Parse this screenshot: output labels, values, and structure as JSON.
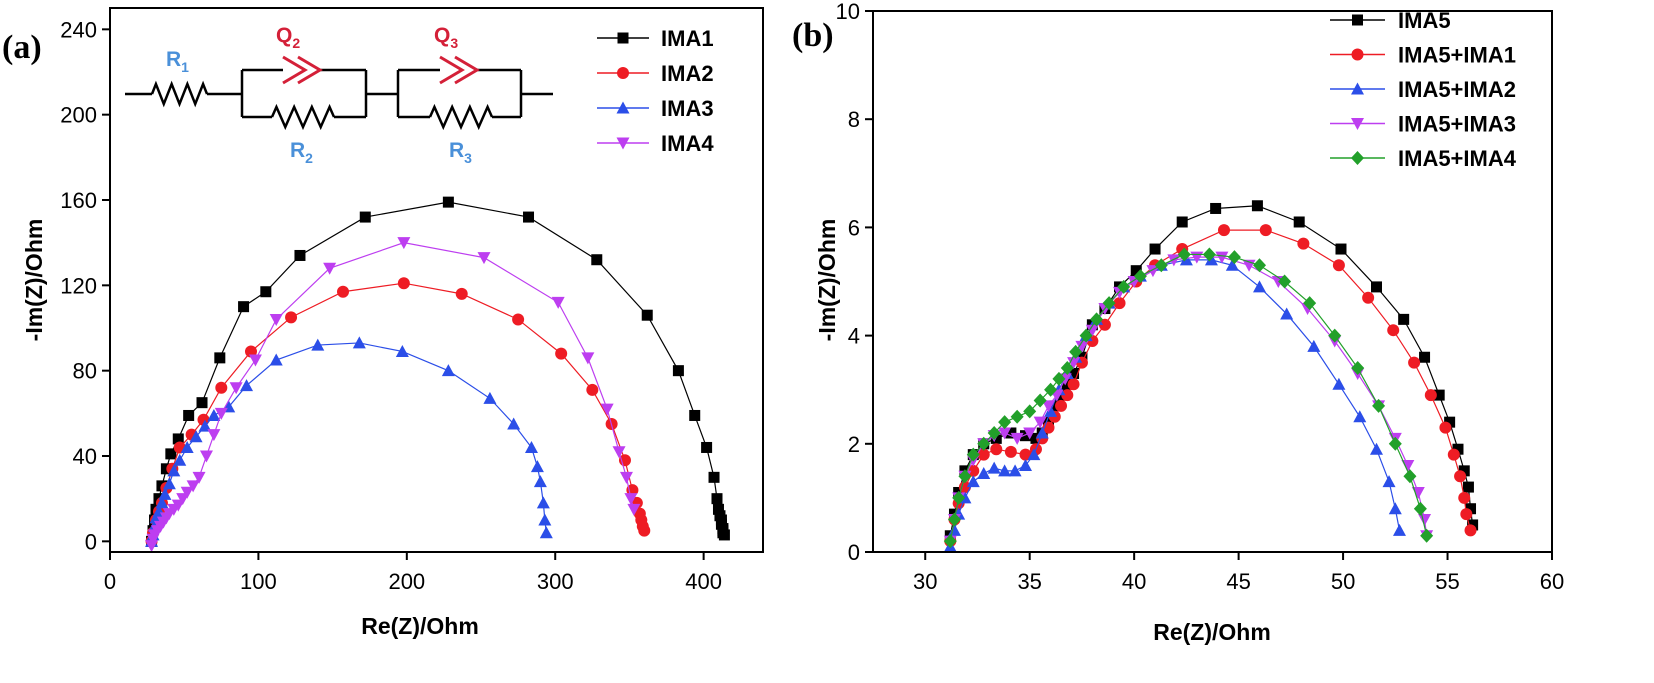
{
  "chart_data": [
    {
      "type": "scatter",
      "panel_label": "(a)",
      "xlabel": "Re(Z)/Ohm",
      "ylabel": "-Im(Z)/Ohm",
      "xlim": [
        0,
        440
      ],
      "ylim": [
        -5,
        250
      ],
      "xticks": [
        0,
        100,
        200,
        300,
        400
      ],
      "yticks": [
        0,
        40,
        80,
        120,
        160,
        200,
        240
      ],
      "legend_position": "top-right",
      "circuit": {
        "labels": [
          "R1",
          "Q2",
          "R2",
          "Q3",
          "R3"
        ]
      },
      "series": [
        {
          "name": "IMA1",
          "color": "#000000",
          "marker": "square",
          "x": [
            28,
            29,
            30,
            31,
            33,
            35,
            38,
            41,
            46,
            53,
            62,
            74,
            90,
            105,
            128,
            172,
            228,
            282,
            328,
            362,
            383,
            394,
            402,
            407,
            409,
            410,
            411,
            412,
            412,
            413,
            413,
            413,
            414
          ],
          "y": [
            0,
            5,
            10,
            15,
            20,
            26,
            34,
            41,
            48,
            59,
            65,
            86,
            110,
            117,
            134,
            152,
            159,
            152,
            132,
            106,
            80,
            59,
            44,
            30,
            20,
            15,
            12,
            10,
            8,
            6,
            5,
            4,
            3
          ]
        },
        {
          "name": "IMA2",
          "color": "#ee1c24",
          "marker": "circle",
          "x": [
            28,
            29,
            31,
            33,
            35,
            38,
            42,
            47,
            55,
            63,
            75,
            95,
            122,
            157,
            198,
            237,
            275,
            304,
            325,
            338,
            347,
            352,
            355,
            357,
            358,
            359,
            360
          ],
          "y": [
            0,
            4,
            10,
            14,
            18,
            25,
            34,
            44,
            50,
            57,
            72,
            89,
            105,
            117,
            121,
            116,
            104,
            88,
            71,
            55,
            38,
            24,
            18,
            13,
            10,
            7,
            5
          ]
        },
        {
          "name": "IMA3",
          "color": "#2b4ee8",
          "marker": "triangle",
          "x": [
            28,
            29,
            30,
            31,
            33,
            35,
            37,
            40,
            43,
            47,
            52,
            58,
            64,
            70,
            80,
            92,
            112,
            140,
            168,
            197,
            228,
            256,
            272,
            284,
            288,
            290,
            292,
            293,
            294
          ],
          "y": [
            0,
            3,
            7,
            11,
            14,
            18,
            22,
            27,
            33,
            38,
            44,
            49,
            54,
            59,
            63,
            73,
            85,
            92,
            93,
            89,
            80,
            67,
            55,
            44,
            35,
            28,
            18,
            10,
            4
          ]
        },
        {
          "name": "IMA4",
          "color": "#bd3ef0",
          "marker": "triangle-down",
          "x": [
            28,
            29,
            30,
            32,
            34,
            36,
            38,
            40,
            43,
            46,
            49,
            52,
            56,
            60,
            65,
            70,
            75,
            85,
            98,
            112,
            148,
            198,
            252,
            302,
            322,
            335,
            343,
            348,
            351,
            353
          ],
          "y": [
            -2,
            1,
            3,
            5,
            7,
            9,
            11,
            13,
            15,
            17,
            20,
            23,
            26,
            30,
            40,
            50,
            60,
            72,
            85,
            104,
            128,
            140,
            133,
            112,
            86,
            62,
            42,
            30,
            20,
            15
          ]
        }
      ]
    },
    {
      "type": "scatter",
      "panel_label": "(b)",
      "xlabel": "Re(Z)/Ohm",
      "ylabel": "-Im(Z)/Ohm",
      "xlim": [
        27.5,
        60
      ],
      "ylim": [
        0,
        10
      ],
      "xticks": [
        30,
        35,
        40,
        45,
        50,
        55,
        60
      ],
      "yticks": [
        0,
        2,
        4,
        6,
        8,
        10
      ],
      "legend_position": "top-right",
      "series": [
        {
          "name": "IMA5",
          "color": "#000000",
          "marker": "square",
          "x": [
            31.2,
            31.4,
            31.6,
            31.9,
            32.3,
            32.8,
            33.4,
            34.1,
            34.8,
            35.3,
            35.6,
            35.9,
            36.2,
            36.5,
            36.8,
            37.1,
            37.5,
            38.0,
            38.6,
            39.3,
            40.1,
            41.0,
            42.3,
            43.9,
            45.9,
            47.9,
            49.9,
            51.6,
            52.9,
            53.9,
            54.6,
            55.1,
            55.5,
            55.8,
            56.0,
            56.1,
            56.2
          ],
          "y": [
            0.3,
            0.7,
            1.1,
            1.5,
            1.8,
            2.0,
            2.1,
            2.2,
            2.15,
            2.1,
            2.2,
            2.4,
            2.7,
            2.9,
            3.1,
            3.3,
            3.6,
            4.2,
            4.5,
            4.9,
            5.2,
            5.6,
            6.1,
            6.35,
            6.4,
            6.1,
            5.6,
            4.9,
            4.3,
            3.6,
            2.9,
            2.4,
            1.9,
            1.5,
            1.2,
            0.8,
            0.5
          ]
        },
        {
          "name": "IMA5+IMA1",
          "color": "#ee1c24",
          "marker": "circle",
          "x": [
            31.2,
            31.4,
            31.6,
            31.9,
            32.3,
            32.8,
            33.4,
            34.1,
            34.8,
            35.3,
            35.6,
            35.9,
            36.2,
            36.5,
            36.8,
            37.1,
            37.5,
            38.0,
            38.6,
            39.3,
            40.1,
            41.0,
            42.3,
            44.3,
            46.3,
            48.1,
            49.8,
            51.2,
            52.4,
            53.4,
            54.2,
            54.9,
            55.3,
            55.6,
            55.8,
            55.9,
            56.1
          ],
          "y": [
            0.2,
            0.6,
            0.9,
            1.2,
            1.5,
            1.8,
            1.9,
            1.85,
            1.8,
            1.9,
            2.1,
            2.3,
            2.5,
            2.7,
            2.9,
            3.1,
            3.5,
            3.9,
            4.2,
            4.6,
            5.0,
            5.3,
            5.6,
            5.95,
            5.95,
            5.7,
            5.3,
            4.7,
            4.1,
            3.5,
            2.9,
            2.3,
            1.8,
            1.4,
            1.0,
            0.7,
            0.4
          ]
        },
        {
          "name": "IMA5+IMA2",
          "color": "#2b4ee8",
          "marker": "triangle",
          "x": [
            31.2,
            31.4,
            31.6,
            31.9,
            32.3,
            32.8,
            33.3,
            33.8,
            34.3,
            34.8,
            35.2,
            35.6,
            36.0,
            36.4,
            36.8,
            37.2,
            37.7,
            38.2,
            38.8,
            39.5,
            40.3,
            41.3,
            42.5,
            43.7,
            44.7,
            46.0,
            47.3,
            48.6,
            49.8,
            50.8,
            51.6,
            52.2,
            52.5,
            52.7
          ],
          "y": [
            0.1,
            0.4,
            0.7,
            1.0,
            1.3,
            1.45,
            1.55,
            1.5,
            1.5,
            1.6,
            1.8,
            2.2,
            2.6,
            3.0,
            3.3,
            3.6,
            4.0,
            4.3,
            4.6,
            4.9,
            5.1,
            5.3,
            5.4,
            5.4,
            5.3,
            4.9,
            4.4,
            3.8,
            3.1,
            2.5,
            1.9,
            1.3,
            0.8,
            0.4
          ]
        },
        {
          "name": "IMA5+IMA3",
          "color": "#bd3ef0",
          "marker": "triangle-down",
          "x": [
            31.2,
            31.4,
            31.6,
            31.9,
            32.3,
            32.8,
            33.3,
            33.8,
            34.4,
            35.0,
            35.5,
            35.9,
            36.3,
            36.7,
            37.1,
            37.5,
            38.0,
            38.6,
            39.3,
            40.0,
            40.9,
            41.9,
            43.0,
            44.2,
            45.5,
            46.9,
            48.3,
            49.6,
            50.7,
            51.7,
            52.5,
            53.1,
            53.6,
            53.9,
            54.0
          ],
          "y": [
            0.2,
            0.6,
            1.0,
            1.4,
            1.7,
            2.0,
            2.15,
            2.2,
            2.1,
            2.2,
            2.4,
            2.7,
            2.9,
            3.2,
            3.5,
            3.8,
            4.1,
            4.5,
            4.8,
            5.0,
            5.2,
            5.4,
            5.45,
            5.45,
            5.3,
            5.0,
            4.5,
            3.9,
            3.3,
            2.7,
            2.1,
            1.6,
            1.1,
            0.6,
            0.3
          ]
        },
        {
          "name": "IMA5+IMA4",
          "color": "#22a02a",
          "marker": "diamond",
          "x": [
            31.2,
            31.4,
            31.6,
            31.9,
            32.3,
            32.8,
            33.3,
            33.8,
            34.4,
            35.0,
            35.5,
            36.0,
            36.4,
            36.8,
            37.2,
            37.7,
            38.2,
            38.8,
            39.5,
            40.3,
            41.3,
            42.4,
            43.6,
            44.8,
            46.0,
            47.2,
            48.4,
            49.6,
            50.7,
            51.7,
            52.5,
            53.2,
            53.7,
            54.0
          ],
          "y": [
            0.2,
            0.6,
            1.0,
            1.4,
            1.8,
            2.0,
            2.2,
            2.4,
            2.5,
            2.6,
            2.8,
            3.0,
            3.2,
            3.4,
            3.7,
            4.0,
            4.3,
            4.6,
            4.9,
            5.1,
            5.3,
            5.5,
            5.5,
            5.45,
            5.3,
            5.0,
            4.6,
            4.0,
            3.4,
            2.7,
            2.0,
            1.4,
            0.8,
            0.3
          ]
        }
      ]
    }
  ]
}
